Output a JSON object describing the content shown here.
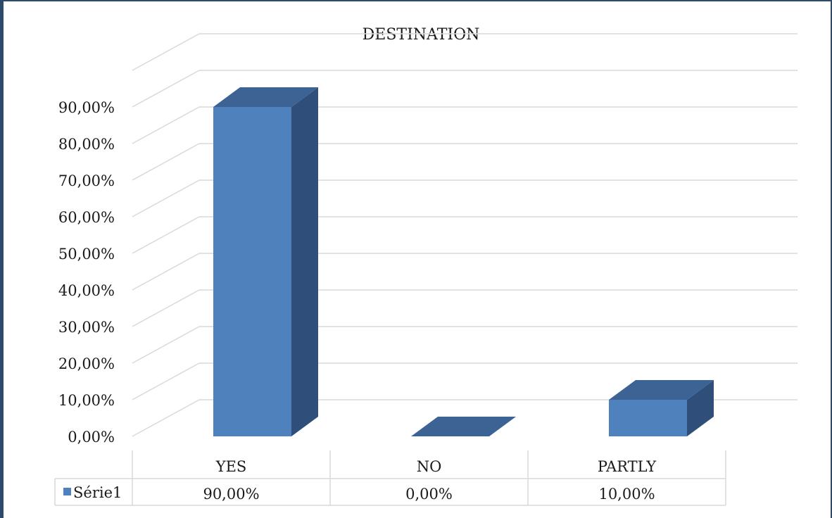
{
  "chart_data": {
    "type": "bar",
    "title": "DESTINATION",
    "categories": [
      "YES",
      "NO",
      "PARTLY"
    ],
    "series": [
      {
        "name": "Série1",
        "values": [
          0.9,
          0.0,
          0.1
        ]
      }
    ],
    "data_table": [
      "90,00%",
      "0,00%",
      "10,00%"
    ],
    "yticks": [
      "0,00%",
      "10,00%",
      "20,00%",
      "30,00%",
      "40,00%",
      "50,00%",
      "60,00%",
      "70,00%",
      "80,00%",
      "90,00%"
    ],
    "ylim": [
      0,
      1
    ],
    "grid": true,
    "style": "3d-column",
    "colors": {
      "front": "#4f81bd",
      "top": "#3c6394",
      "side": "#2f4f7a"
    }
  }
}
